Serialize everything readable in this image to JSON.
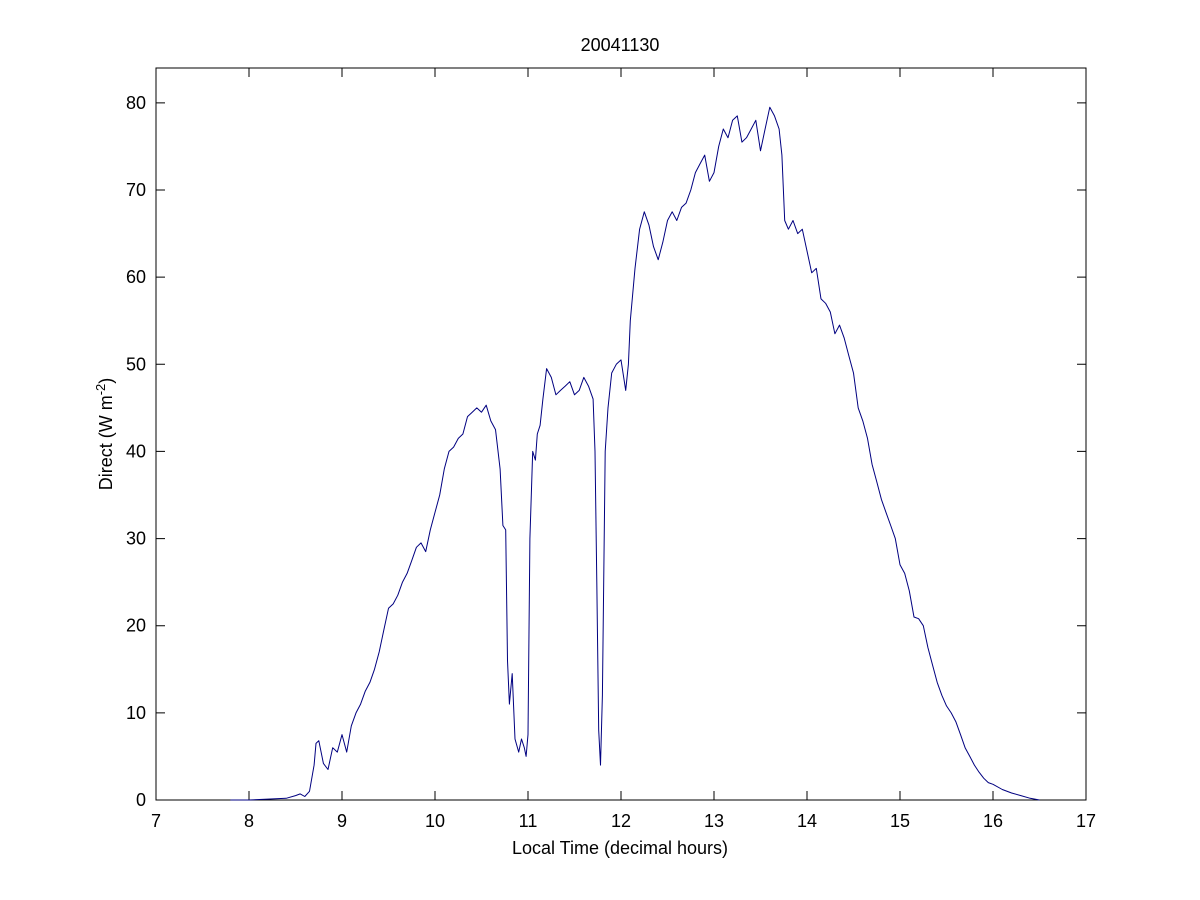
{
  "chart_data": {
    "type": "line",
    "title": "20041130",
    "xlabel": "Local Time (decimal hours)",
    "ylabel_main": "Direct (W m",
    "ylabel_sup": "-2",
    "ylabel_close": ")",
    "xlim": [
      7,
      17
    ],
    "ylim": [
      0,
      84
    ],
    "xticks": [
      7,
      8,
      9,
      10,
      11,
      12,
      13,
      14,
      15,
      16,
      17
    ],
    "yticks": [
      0,
      10,
      20,
      30,
      40,
      50,
      60,
      70,
      80
    ],
    "grid": false,
    "line_color": "#000080",
    "series": [
      {
        "x": [
          7.8,
          8.0,
          8.2,
          8.4,
          8.5,
          8.55,
          8.6,
          8.65,
          8.7,
          8.72,
          8.75,
          8.8,
          8.85,
          8.9,
          8.95,
          9.0,
          9.05,
          9.1,
          9.15,
          9.2,
          9.25,
          9.3,
          9.35,
          9.4,
          9.45,
          9.5,
          9.55,
          9.6,
          9.65,
          9.7,
          9.75,
          9.8,
          9.85,
          9.9,
          9.95,
          10.0,
          10.05,
          10.1,
          10.15,
          10.2,
          10.25,
          10.3,
          10.35,
          10.4,
          10.45,
          10.5,
          10.55,
          10.6,
          10.65,
          10.7,
          10.73,
          10.76,
          10.78,
          10.8,
          10.83,
          10.86,
          10.9,
          10.93,
          10.96,
          10.98,
          11.0,
          11.02,
          11.05,
          11.08,
          11.1,
          11.13,
          11.16,
          11.2,
          11.25,
          11.3,
          11.35,
          11.4,
          11.45,
          11.5,
          11.55,
          11.6,
          11.65,
          11.7,
          11.72,
          11.74,
          11.76,
          11.78,
          11.8,
          11.83,
          11.86,
          11.9,
          11.95,
          12.0,
          12.05,
          12.08,
          12.1,
          12.15,
          12.2,
          12.25,
          12.3,
          12.35,
          12.4,
          12.45,
          12.5,
          12.55,
          12.6,
          12.65,
          12.7,
          12.75,
          12.8,
          12.85,
          12.9,
          12.95,
          13.0,
          13.05,
          13.1,
          13.15,
          13.2,
          13.25,
          13.3,
          13.35,
          13.4,
          13.45,
          13.5,
          13.55,
          13.6,
          13.65,
          13.7,
          13.73,
          13.76,
          13.8,
          13.85,
          13.9,
          13.95,
          14.0,
          14.05,
          14.1,
          14.15,
          14.2,
          14.25,
          14.3,
          14.35,
          14.4,
          14.45,
          14.5,
          14.55,
          14.6,
          14.65,
          14.7,
          14.75,
          14.8,
          14.85,
          14.9,
          14.95,
          15.0,
          15.05,
          15.1,
          15.15,
          15.2,
          15.25,
          15.3,
          15.35,
          15.4,
          15.45,
          15.5,
          15.55,
          15.6,
          15.65,
          15.7,
          15.75,
          15.8,
          15.85,
          15.9,
          15.95,
          16.0,
          16.1,
          16.2,
          16.3,
          16.4,
          16.5
        ],
        "y": [
          0.0,
          0.0,
          0.1,
          0.2,
          0.5,
          0.7,
          0.4,
          1.0,
          4.0,
          6.5,
          6.8,
          4.2,
          3.5,
          6.0,
          5.5,
          7.5,
          5.5,
          8.5,
          10.0,
          11.0,
          12.5,
          13.5,
          15.0,
          17.0,
          19.5,
          22.0,
          22.5,
          23.5,
          25.0,
          26.0,
          27.5,
          29.0,
          29.5,
          28.5,
          31.0,
          33.0,
          35.0,
          38.0,
          40.0,
          40.5,
          41.5,
          42.0,
          44.0,
          44.5,
          45.0,
          44.5,
          45.3,
          43.5,
          42.5,
          38.0,
          31.5,
          31.0,
          16.0,
          11.0,
          14.5,
          7.0,
          5.5,
          7.0,
          6.0,
          5.0,
          7.5,
          30.0,
          40.0,
          39.0,
          42.0,
          43.0,
          46.0,
          49.5,
          48.5,
          46.5,
          47.0,
          47.5,
          48.0,
          46.5,
          47.0,
          48.5,
          47.5,
          46.0,
          40.0,
          25.0,
          8.0,
          4.0,
          12.0,
          40.0,
          45.0,
          49.0,
          50.0,
          50.5,
          47.0,
          50.0,
          55.0,
          61.0,
          65.5,
          67.5,
          66.0,
          63.5,
          62.0,
          64.0,
          66.5,
          67.5,
          66.5,
          68.0,
          68.5,
          70.0,
          72.0,
          73.0,
          74.0,
          71.0,
          72.0,
          75.0,
          77.0,
          76.0,
          78.0,
          78.5,
          75.5,
          76.0,
          77.0,
          78.0,
          74.5,
          77.0,
          79.5,
          78.5,
          77.0,
          74.0,
          66.5,
          65.5,
          66.5,
          65.0,
          65.5,
          63.0,
          60.5,
          61.0,
          57.5,
          57.0,
          56.0,
          53.5,
          54.5,
          53.0,
          51.0,
          49.0,
          45.0,
          43.5,
          41.5,
          38.5,
          36.5,
          34.5,
          33.0,
          31.5,
          30.0,
          27.0,
          26.0,
          24.0,
          21.0,
          20.8,
          20.0,
          17.5,
          15.5,
          13.5,
          12.0,
          10.8,
          10.0,
          9.0,
          7.5,
          6.0,
          5.0,
          4.0,
          3.2,
          2.5,
          2.0,
          1.8,
          1.2,
          0.8,
          0.5,
          0.2,
          0.0
        ]
      }
    ]
  }
}
